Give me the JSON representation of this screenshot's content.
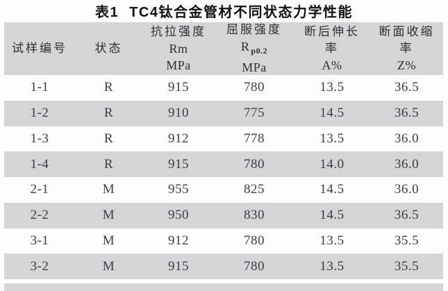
{
  "title": {
    "part1": "表1",
    "part2": "TC4钛合金管材不同状态力学性能"
  },
  "table": {
    "header": {
      "col1": "试样编号",
      "col2": "状态",
      "col3": {
        "l1": "抗拉强度",
        "l2": "Rm",
        "l3": "MPa"
      },
      "col4": {
        "l1": "屈服强度",
        "l2_main": "R",
        "l2_sub": "p0.2",
        "l3": "MPa"
      },
      "col5": {
        "l1": "断后伸长",
        "l2": "率",
        "l3": "A%"
      },
      "col6": {
        "l1": "断面收缩",
        "l2": "率",
        "l3": "Z%"
      }
    },
    "rows": [
      [
        "1-1",
        "R",
        "915",
        "780",
        "13.5",
        "36.5"
      ],
      [
        "1-2",
        "R",
        "910",
        "775",
        "14.5",
        "36.5"
      ],
      [
        "1-3",
        "R",
        "912",
        "778",
        "13.5",
        "36.0"
      ],
      [
        "1-4",
        "R",
        "915",
        "780",
        "14.0",
        "36.0"
      ],
      [
        "2-1",
        "M",
        "955",
        "825",
        "14.5",
        "36.0"
      ],
      [
        "2-2",
        "M",
        "950",
        "830",
        "14.5",
        "36.5"
      ],
      [
        "3-1",
        "M",
        "912",
        "780",
        "13.5",
        "35.5"
      ],
      [
        "3-2",
        "M",
        "915",
        "780",
        "13.5",
        "35.5"
      ]
    ]
  },
  "colors": {
    "row_alt_bg": "#d5d5d7",
    "header_bg": "#d5d5d7",
    "data_text": "#3c3c46",
    "title_text": "#121212",
    "page_bg": "#fdfdfd"
  }
}
